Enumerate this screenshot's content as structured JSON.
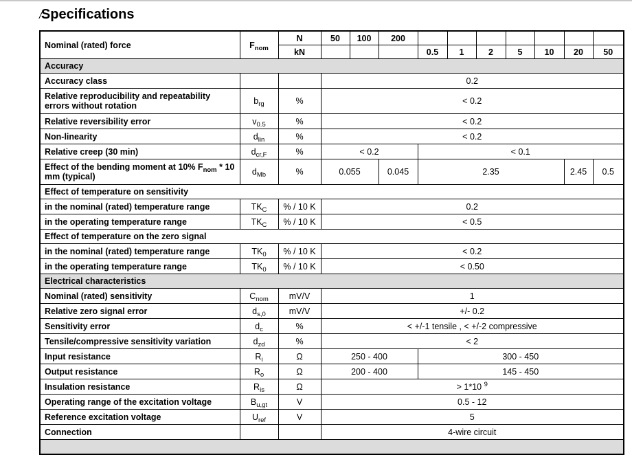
{
  "title_mark": "/",
  "title": "Specifications",
  "header": {
    "label": "Nominal (rated) force",
    "symbol": {
      "base": "F",
      "sub": "nom"
    },
    "unit_n": "N",
    "unit_kn": "kN",
    "n_values": [
      "50",
      "100",
      "200"
    ],
    "kn_values": [
      "0.5",
      "1",
      "2",
      "5",
      "10",
      "20",
      "50"
    ]
  },
  "rows": [
    {
      "type": "section",
      "label": "Accuracy"
    },
    {
      "type": "r",
      "label": "Accuracy class",
      "sym": null,
      "unit": "",
      "values": [
        {
          "v": "0.2",
          "span": 10
        }
      ]
    },
    {
      "type": "tall",
      "label": "Relative reproducibility and repeatability errors without rotation",
      "sym": {
        "base": "b",
        "sub": "rg"
      },
      "unit": "%",
      "values": [
        {
          "v": "< 0.2",
          "span": 10
        }
      ]
    },
    {
      "type": "r",
      "label": "Relative reversibility error",
      "sym": {
        "base": "v",
        "sub": "0.5"
      },
      "unit": "%",
      "values": [
        {
          "v": "< 0.2",
          "span": 10
        }
      ]
    },
    {
      "type": "r",
      "label": "Non-linearity",
      "sym": {
        "base": "d",
        "sub": "lin"
      },
      "unit": "%",
      "values": [
        {
          "v": "< 0.2",
          "span": 10
        }
      ]
    },
    {
      "type": "r",
      "label": "Relative creep (30 min)",
      "sym": {
        "base": "d",
        "sub": "cr,F"
      },
      "unit": "%",
      "values": [
        {
          "v": "< 0.2",
          "span": 3
        },
        {
          "v": "< 0.1",
          "span": 7
        }
      ]
    },
    {
      "type": "tall",
      "label": "Effect of the bending moment at 10% F",
      "label_sub": "nom",
      "label_tail": " * 10 mm (typical)",
      "sym": {
        "base": "d",
        "sub": "Mb"
      },
      "unit": "%",
      "values": [
        {
          "v": "0.055",
          "span": 2
        },
        {
          "v": "0.045",
          "span": 1
        },
        {
          "v": "2.35",
          "span": 5
        },
        {
          "v": "2.45",
          "span": 1
        },
        {
          "v": "0.5",
          "span": 1
        }
      ]
    },
    {
      "type": "sub",
      "label": "Effect of temperature on sensitivity"
    },
    {
      "type": "r",
      "label": "in the nominal (rated) temperature range",
      "sym": {
        "base": "TK",
        "sub": "C"
      },
      "unit": "% / 10 K",
      "values": [
        {
          "v": "0.2",
          "span": 10
        }
      ]
    },
    {
      "type": "r",
      "label": "in the operating temperature range",
      "sym": {
        "base": "TK",
        "sub": "C"
      },
      "unit": "% / 10 K",
      "values": [
        {
          "v": "< 0.5",
          "span": 10
        }
      ]
    },
    {
      "type": "sub",
      "label": "Effect of temperature on the zero signal"
    },
    {
      "type": "r",
      "label": "in the nominal (rated) temperature range",
      "sym": {
        "base": "TK",
        "sub": "0"
      },
      "unit": "% / 10 K",
      "values": [
        {
          "v": "< 0.2",
          "span": 10
        }
      ]
    },
    {
      "type": "r",
      "label": "in the operating temperature range",
      "sym": {
        "base": "TK",
        "sub": "0"
      },
      "unit": "% / 10 K",
      "values": [
        {
          "v": "< 0.50",
          "span": 10
        }
      ]
    },
    {
      "type": "section",
      "label": "Electrical characteristics"
    },
    {
      "type": "r",
      "label": "Nominal (rated) sensitivity",
      "sym": {
        "base": "C",
        "sub": "nom"
      },
      "unit": "mV/V",
      "values": [
        {
          "v": "1",
          "span": 10
        }
      ]
    },
    {
      "type": "r",
      "label": "Relative zero signal error",
      "sym": {
        "base": "d",
        "sub": "s,0"
      },
      "unit": "mV/V",
      "values": [
        {
          "v": "+/- 0.2",
          "span": 10
        }
      ]
    },
    {
      "type": "r",
      "label": "Sensitivity error",
      "sym": {
        "base": "d",
        "sub": "c"
      },
      "unit": "%",
      "values": [
        {
          "v": "< +/-1 tensile , < +/-2 compressive",
          "span": 10
        }
      ]
    },
    {
      "type": "r",
      "label": "Tensile/compressive sensitivity variation",
      "sym": {
        "base": "d",
        "sub": "zd"
      },
      "unit": "%",
      "values": [
        {
          "v": "< 2",
          "span": 10
        }
      ]
    },
    {
      "type": "r",
      "label": "Input resistance",
      "sym": {
        "base": "R",
        "sub": "i"
      },
      "unit": "Ω",
      "values": [
        {
          "v": "250 - 400",
          "span": 3
        },
        {
          "v": "300 - 450",
          "span": 7
        }
      ]
    },
    {
      "type": "r",
      "label": "Output resistance",
      "sym": {
        "base": "R",
        "sub": "o"
      },
      "unit": "Ω",
      "values": [
        {
          "v": "200 - 400",
          "span": 3
        },
        {
          "v": "145 - 450",
          "span": 7
        }
      ]
    },
    {
      "type": "r",
      "label": "Insulation resistance",
      "sym": {
        "base": "R",
        "sub": "is"
      },
      "unit": "Ω",
      "values": [
        {
          "v": "> 1*10 ",
          "sup": "9",
          "span": 10
        }
      ]
    },
    {
      "type": "r",
      "label": "Operating range of the excitation voltage",
      "sym": {
        "base": "B",
        "sub": "u,gt"
      },
      "unit": "V",
      "values": [
        {
          "v": "0.5 - 12",
          "span": 10
        }
      ]
    },
    {
      "type": "r",
      "label": "Reference excitation voltage",
      "sym": {
        "base": "U",
        "sub": "ref"
      },
      "unit": "V",
      "values": [
        {
          "v": "5",
          "span": 10
        }
      ]
    },
    {
      "type": "r",
      "label": "Connection",
      "sym": null,
      "unit": "",
      "values": [
        {
          "v": "4-wire circuit",
          "span": 10
        }
      ]
    },
    {
      "type": "section",
      "label": ""
    }
  ]
}
